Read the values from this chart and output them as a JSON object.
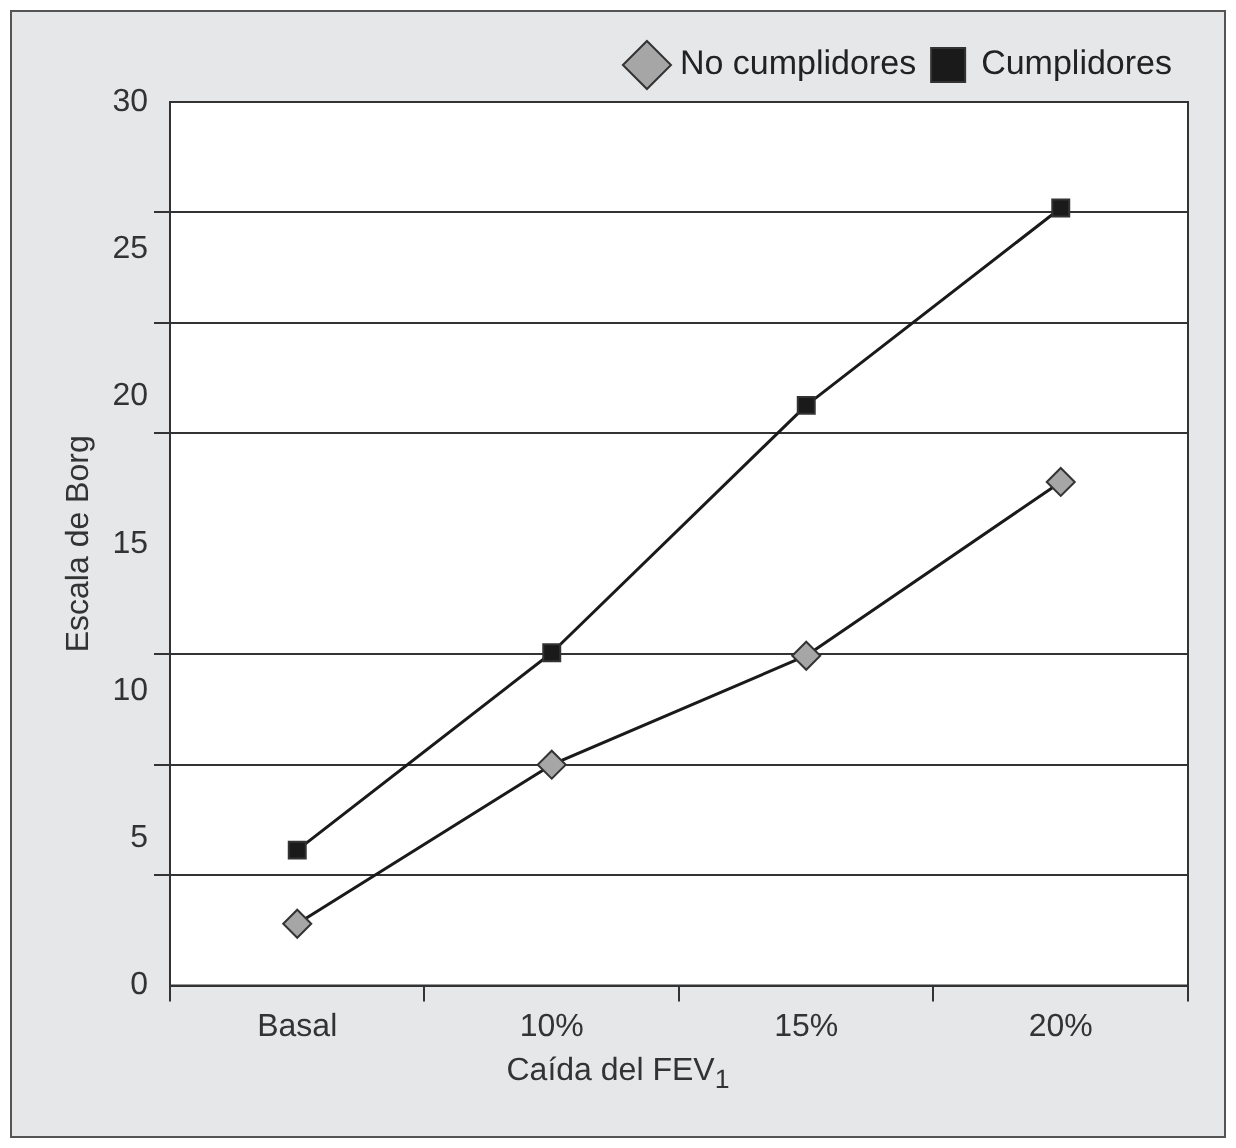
{
  "chart_data": {
    "type": "line",
    "xlabel": "Caída del FEV$_{1}$",
    "ylabel": "Escala de Borg",
    "categories": [
      "Basal",
      "10%",
      "15%",
      "20%"
    ],
    "series": [
      {
        "name": "No cumplidores",
        "color": "#a6a6a6",
        "marker": "diamond",
        "values": [
          2.1,
          7.5,
          11.2,
          17.1
        ]
      },
      {
        "name": "Cumplidores",
        "color": "#1a1a1a",
        "marker": "square",
        "values": [
          4.6,
          11.3,
          19.7,
          26.4
        ]
      }
    ],
    "ylim": [
      0,
      30
    ],
    "yticks": [
      0,
      {
        "value": 3.75,
        "label": null
      },
      5,
      {
        "value": 7.5,
        "label": null
      },
      10,
      {
        "value": 11.25,
        "label": null
      },
      15,
      {
        "value": 18.75,
        "label": null
      },
      20,
      {
        "value": 22.5,
        "label": null
      },
      25,
      {
        "value": 26.25,
        "label": null
      },
      30
    ],
    "grid": "y",
    "legend": "top right",
    "line_style": "solid"
  }
}
